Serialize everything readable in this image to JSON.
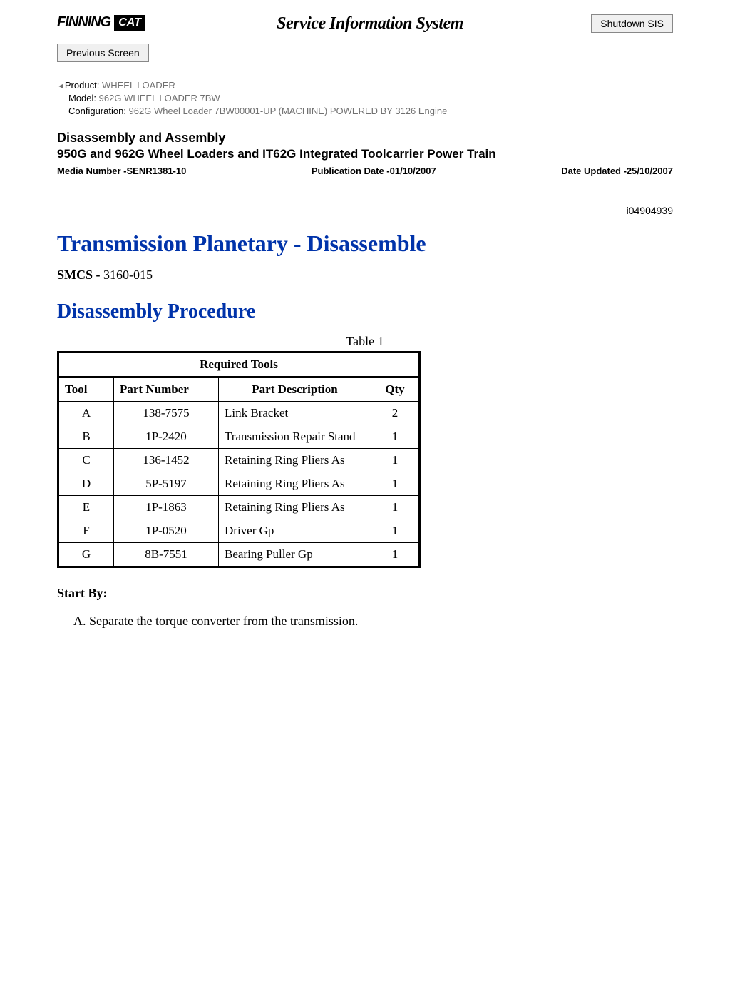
{
  "header": {
    "finning_logo": "FINNING",
    "cat_logo": "CAT",
    "system_title": "Service Information System",
    "shutdown_btn": "Shutdown SIS",
    "previous_btn": "Previous Screen"
  },
  "meta": {
    "product_label": "Product:",
    "product_value": "WHEEL LOADER",
    "model_label": "Model:",
    "model_value": "962G WHEEL LOADER 7BW",
    "config_label": "Configuration:",
    "config_value": "962G Wheel Loader 7BW00001-UP (MACHINE) POWERED BY 3126 Engine"
  },
  "doc": {
    "type": "Disassembly and Assembly",
    "subtitle": "950G and 962G Wheel Loaders and IT62G Integrated Toolcarrier Power Train",
    "media_number": "Media Number -SENR1381-10",
    "pub_date": "Publication Date -01/10/2007",
    "date_updated": "Date Updated -25/10/2007",
    "doc_id": "i04904939",
    "main_title": "Transmission Planetary - Disassemble",
    "smcs_label": "SMCS - ",
    "smcs_value": "3160-015",
    "section_title": "Disassembly Procedure"
  },
  "table": {
    "caption": "Table 1",
    "title": "Required Tools",
    "headers": {
      "tool": "Tool",
      "part_number": "Part Number",
      "part_description": "Part Description",
      "qty": "Qty"
    },
    "rows": [
      {
        "tool": "A",
        "pn": "138-7575",
        "desc": "Link Bracket",
        "qty": "2"
      },
      {
        "tool": "B",
        "pn": "1P-2420",
        "desc": "Transmission Repair Stand",
        "qty": "1"
      },
      {
        "tool": "C",
        "pn": "136-1452",
        "desc": "Retaining Ring Pliers As",
        "qty": "1"
      },
      {
        "tool": "D",
        "pn": "5P-5197",
        "desc": "Retaining Ring Pliers As",
        "qty": "1"
      },
      {
        "tool": "E",
        "pn": "1P-1863",
        "desc": "Retaining Ring Pliers As",
        "qty": "1"
      },
      {
        "tool": "F",
        "pn": "1P-0520",
        "desc": "Driver Gp",
        "qty": "1"
      },
      {
        "tool": "G",
        "pn": "8B-7551",
        "desc": "Bearing Puller Gp",
        "qty": "1"
      }
    ]
  },
  "start_by": {
    "label": "Start By:",
    "items": [
      "Separate the torque converter from the transmission."
    ]
  }
}
